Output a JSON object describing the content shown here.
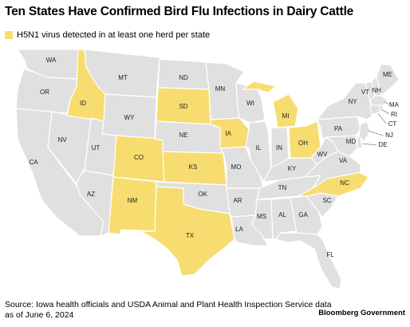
{
  "title": "Ten States Have Confirmed Bird Flu Infections in Dairy Cattle",
  "legend": {
    "label": "H5N1 virus detected in at least one herd per state",
    "color": "#f7dc6f"
  },
  "map_colors": {
    "affected": "#f7dc6f",
    "unaffected": "#e0e0e0",
    "border": "#ffffff"
  },
  "states": {
    "WA": "WA",
    "OR": "OR",
    "CA": "CA",
    "NV": "NV",
    "ID": "ID",
    "MT": "MT",
    "WY": "WY",
    "UT": "UT",
    "AZ": "AZ",
    "CO": "CO",
    "NM": "NM",
    "ND": "ND",
    "SD": "SD",
    "NE": "NE",
    "KS": "KS",
    "OK": "OK",
    "TX": "TX",
    "MN": "MN",
    "IA": "IA",
    "MO": "MO",
    "AR": "AR",
    "LA": "LA",
    "WI": "WI",
    "IL": "IL",
    "MI": "MI",
    "IN": "IN",
    "OH": "OH",
    "KY": "KY",
    "TN": "TN",
    "MS": "MS",
    "AL": "AL",
    "GA": "GA",
    "FL": "FL",
    "SC": "SC",
    "NC": "NC",
    "VA": "VA",
    "WV": "WV",
    "PA": "PA",
    "NY": "NY",
    "VT": "VT",
    "NH": "NH",
    "ME": "ME",
    "MA": "MA",
    "RI": "RI",
    "CT": "CT",
    "NJ": "NJ",
    "DE": "DE",
    "MD": "MD"
  },
  "affected_states": [
    "ID",
    "SD",
    "CO",
    "KS",
    "NM",
    "TX",
    "IA",
    "MI",
    "OH",
    "NC"
  ],
  "source": "Source: Iowa health officials and USDA Animal and Plant Health Inspection Service data as of June 6, 2024",
  "brand": "Bloomberg Government"
}
